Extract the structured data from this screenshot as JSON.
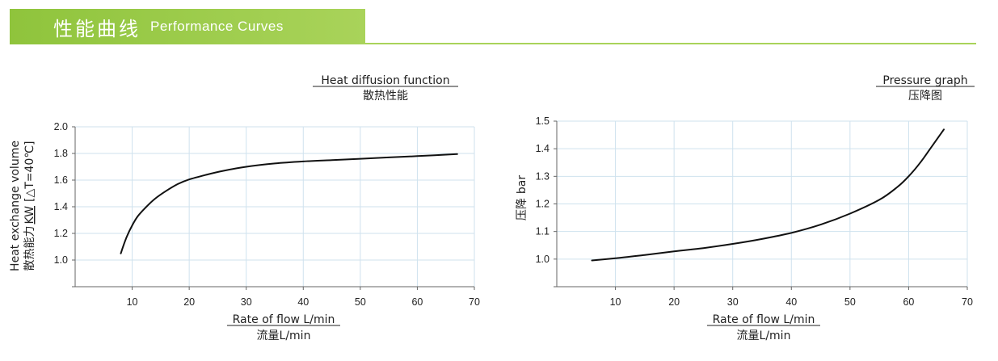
{
  "header": {
    "title_cn": "性能曲线",
    "title_en": "Performance Curves",
    "accent_color": "#9dcc4a"
  },
  "chart_data": [
    {
      "type": "line",
      "title": "Heat diffusion function",
      "subtitle": "散热性能",
      "xlabel": "Rate of flow L/min",
      "xlabel_cn": "流量L/min",
      "ylabel": "Heat exchange volume",
      "ylabel_cn": "散热能力",
      "ylabel_unit": "KW",
      "ylabel_condition": "[△T=40℃]",
      "xlim": [
        0,
        70
      ],
      "ylim": [
        0.8,
        2.0
      ],
      "xticks": [
        "10",
        "20",
        "30",
        "40",
        "50",
        "60",
        "70"
      ],
      "yticks": [
        "1.0",
        "1.2",
        "1.4",
        "1.6",
        "1.8",
        "2.0"
      ],
      "grid": true,
      "series": [
        {
          "name": "Heat exchange",
          "x": [
            8,
            9,
            10,
            11,
            12.5,
            14,
            16,
            18,
            20,
            23,
            26,
            30,
            35,
            40,
            45,
            50,
            55,
            60,
            67
          ],
          "y": [
            1.05,
            1.17,
            1.26,
            1.33,
            1.4,
            1.46,
            1.52,
            1.57,
            1.605,
            1.64,
            1.67,
            1.7,
            1.725,
            1.74,
            1.75,
            1.76,
            1.77,
            1.78,
            1.795
          ]
        }
      ]
    },
    {
      "type": "line",
      "title": "Pressure graph",
      "subtitle": "压降图",
      "xlabel": "Rate of flow L/min",
      "xlabel_cn": "流量L/min",
      "ylabel": "bar",
      "ylabel_cn": "压降",
      "xlim": [
        0,
        70
      ],
      "ylim": [
        0.9,
        1.5
      ],
      "xticks": [
        "10",
        "20",
        "30",
        "40",
        "50",
        "60",
        "70"
      ],
      "yticks": [
        "1.0",
        "1.1",
        "1.2",
        "1.3",
        "1.4",
        "1.5"
      ],
      "grid": true,
      "series": [
        {
          "name": "Pressure drop",
          "x": [
            6,
            10,
            15,
            20,
            25,
            30,
            35,
            40,
            45,
            50,
            55,
            58,
            60,
            62,
            64,
            66
          ],
          "y": [
            0.995,
            1.003,
            1.015,
            1.028,
            1.04,
            1.055,
            1.073,
            1.095,
            1.125,
            1.165,
            1.215,
            1.26,
            1.3,
            1.35,
            1.41,
            1.47
          ]
        }
      ]
    }
  ]
}
